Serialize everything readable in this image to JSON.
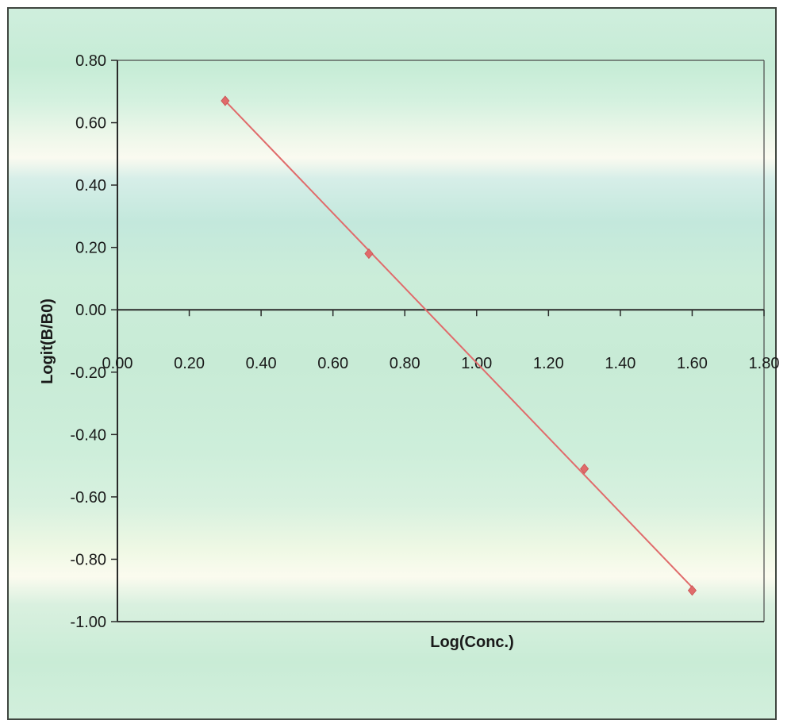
{
  "chart_data": {
    "type": "scatter",
    "title": "",
    "xlabel": "Log(Conc.)",
    "ylabel": "Logit(B/B0)",
    "xlim": [
      0,
      1.8
    ],
    "ylim": [
      -1.0,
      0.8
    ],
    "x_tick_labels": [
      "0.00",
      "0.20",
      "0.40",
      "0.60",
      "0.80",
      "1.00",
      "1.20",
      "1.40",
      "1.60",
      "1.80"
    ],
    "y_tick_labels": [
      "0.80",
      "0.60",
      "0.40",
      "0.20",
      "0.00",
      "-0.20",
      "-0.40",
      "-0.60",
      "-0.80",
      "-1.00"
    ],
    "grid": false,
    "legend": "none",
    "series": [
      {
        "x": [
          0.3,
          0.7,
          1.3,
          1.6
        ],
        "y": [
          0.67,
          0.18,
          -0.51,
          -0.9
        ],
        "marker": "diamond",
        "color": "#e06b6b",
        "trendline": {
          "type": "linear",
          "from": [
            0.3,
            0.67
          ],
          "to": [
            1.6,
            -0.89
          ],
          "color": "#e06b6b"
        }
      }
    ]
  }
}
